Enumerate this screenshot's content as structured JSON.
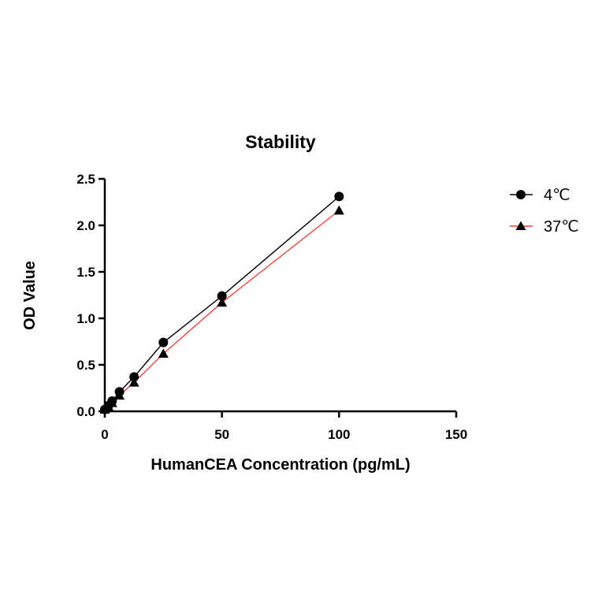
{
  "chart_data": {
    "type": "scatter",
    "title": "Stability",
    "xlabel": "HumanCEA Concentration (pg/mL)",
    "ylabel": "OD Value",
    "xlim": [
      0,
      150
    ],
    "ylim": [
      0,
      2.5
    ],
    "x_ticks": [
      "0",
      "50",
      "100",
      "150"
    ],
    "y_ticks": [
      "0.0",
      "0.5",
      "1.0",
      "1.5",
      "2.0",
      "2.5"
    ],
    "grid": false,
    "legend_position": "right",
    "series": [
      {
        "name": "4℃",
        "marker": "circle",
        "color": "#000000",
        "fit_line_color": "#000000",
        "x": [
          0,
          1.5625,
          3.125,
          6.25,
          12.5,
          25,
          50,
          100
        ],
        "y": [
          0.02,
          0.06,
          0.11,
          0.21,
          0.37,
          0.74,
          1.24,
          2.31
        ]
      },
      {
        "name": "37℃",
        "marker": "triangle",
        "color": "#000000",
        "fit_line_color": "#e8463c",
        "x": [
          0,
          1.5625,
          3.125,
          6.25,
          12.5,
          25,
          50,
          100
        ],
        "y": [
          0.02,
          0.05,
          0.09,
          0.17,
          0.31,
          0.62,
          1.17,
          2.16
        ]
      }
    ]
  }
}
